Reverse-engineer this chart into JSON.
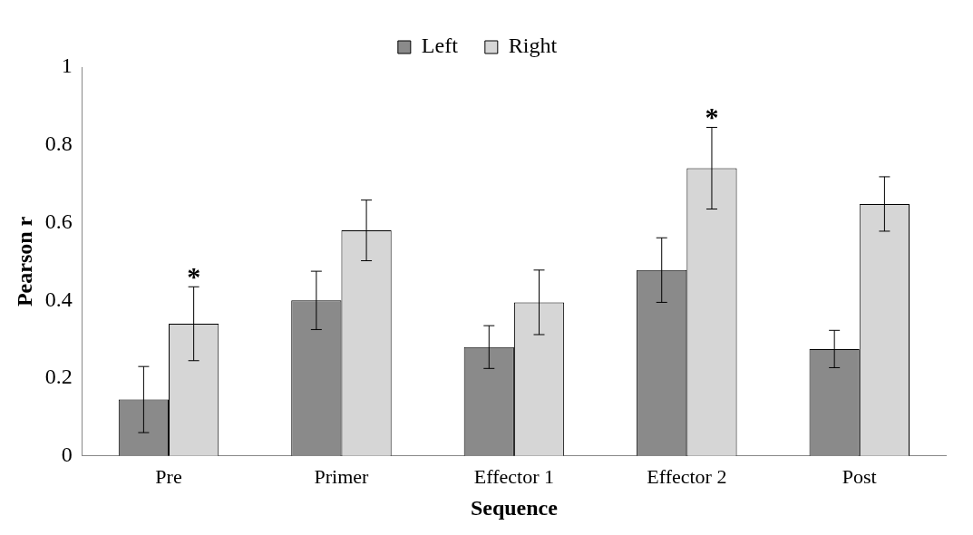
{
  "chart_data": {
    "type": "bar",
    "xlabel": "Sequence",
    "ylabel": "Pearson r",
    "categories": [
      "Pre",
      "Primer",
      "Effector 1",
      "Effector 2",
      "Post"
    ],
    "series": [
      {
        "name": "Left",
        "color": "#8a8a8a",
        "values": [
          0.145,
          0.4,
          0.28,
          0.478,
          0.275
        ],
        "errors": [
          0.085,
          0.075,
          0.055,
          0.083,
          0.048
        ]
      },
      {
        "name": "Right",
        "color": "#d6d6d6",
        "values": [
          0.34,
          0.58,
          0.395,
          0.74,
          0.648
        ],
        "errors": [
          0.095,
          0.078,
          0.083,
          0.105,
          0.07
        ]
      }
    ],
    "ylim": [
      0,
      1
    ],
    "yticks": [
      0,
      0.2,
      0.4,
      0.6,
      0.8,
      1
    ],
    "grid": false,
    "legend": "top",
    "annotations": [
      {
        "text": "*",
        "x": "Pre",
        "y": 0.34
      },
      {
        "text": "*",
        "x": "Effector 2",
        "y": 0.74
      }
    ]
  }
}
